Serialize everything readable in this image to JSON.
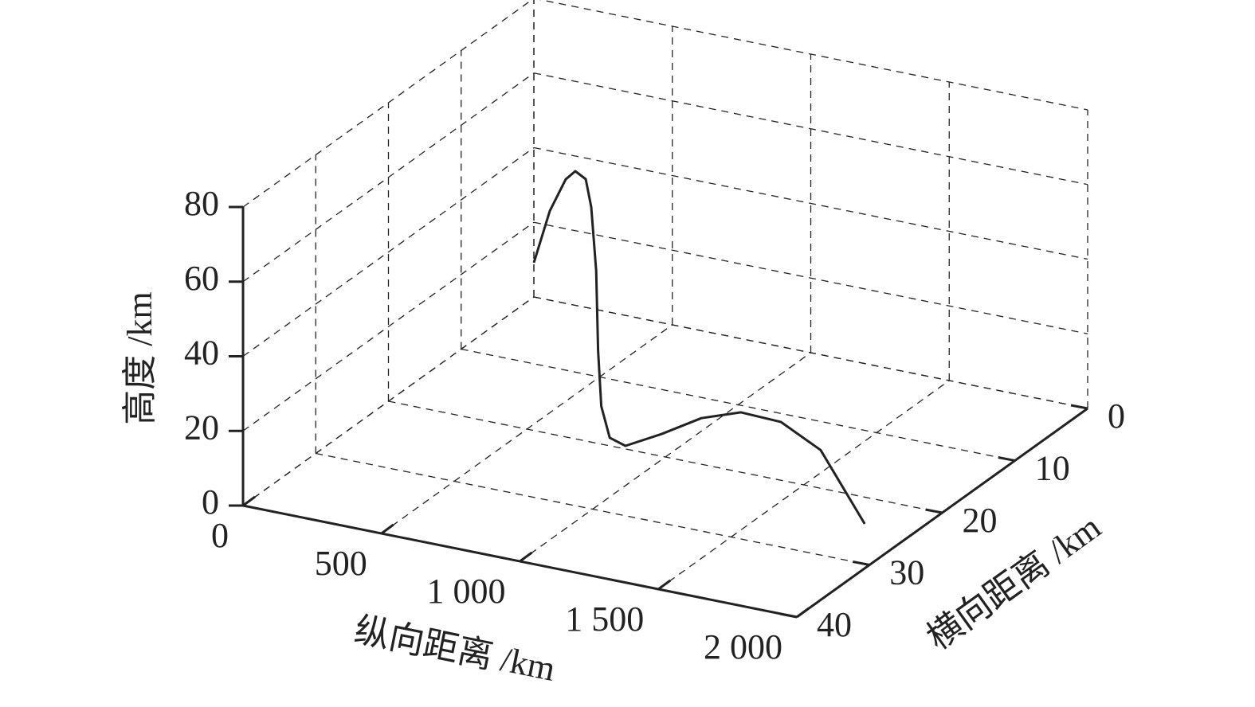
{
  "chart_data": {
    "type": "line3d",
    "xlabel": "纵向距离 /km",
    "ylabel": "横向距离 /km",
    "zlabel": "高度 /km",
    "xlim": [
      0,
      2000
    ],
    "ylim": [
      0,
      40
    ],
    "zlim": [
      0,
      80
    ],
    "xticks": [
      0,
      500,
      {
        "value": 1000,
        "label": "1 000"
      },
      {
        "value": 1500,
        "label": "1 500"
      },
      {
        "value": 2000,
        "label": "2 000"
      }
    ],
    "yticks": [
      0,
      10,
      20,
      30,
      40
    ],
    "zticks": [
      0,
      20,
      40,
      60,
      80
    ],
    "grid": true,
    "series": [
      {
        "color": "#222222",
        "x": [
          0,
          110,
          220,
          281,
          345,
          391,
          435,
          568,
          737,
          870,
          961,
          1091,
          1235,
          1378,
          1522,
          1666,
          1825
        ],
        "y": [
          0,
          2,
          4,
          5,
          6,
          7,
          8,
          12.8,
          18.8,
          22.7,
          24,
          24,
          24,
          24,
          24,
          24,
          24
        ],
        "z": [
          9.2,
          27.5,
          40.4,
          44.9,
          45.1,
          39.7,
          24.7,
          12,
          8,
          7,
          8,
          13.1,
          19.5,
          23.2,
          22.8,
          17.4,
          0
        ]
      }
    ]
  }
}
